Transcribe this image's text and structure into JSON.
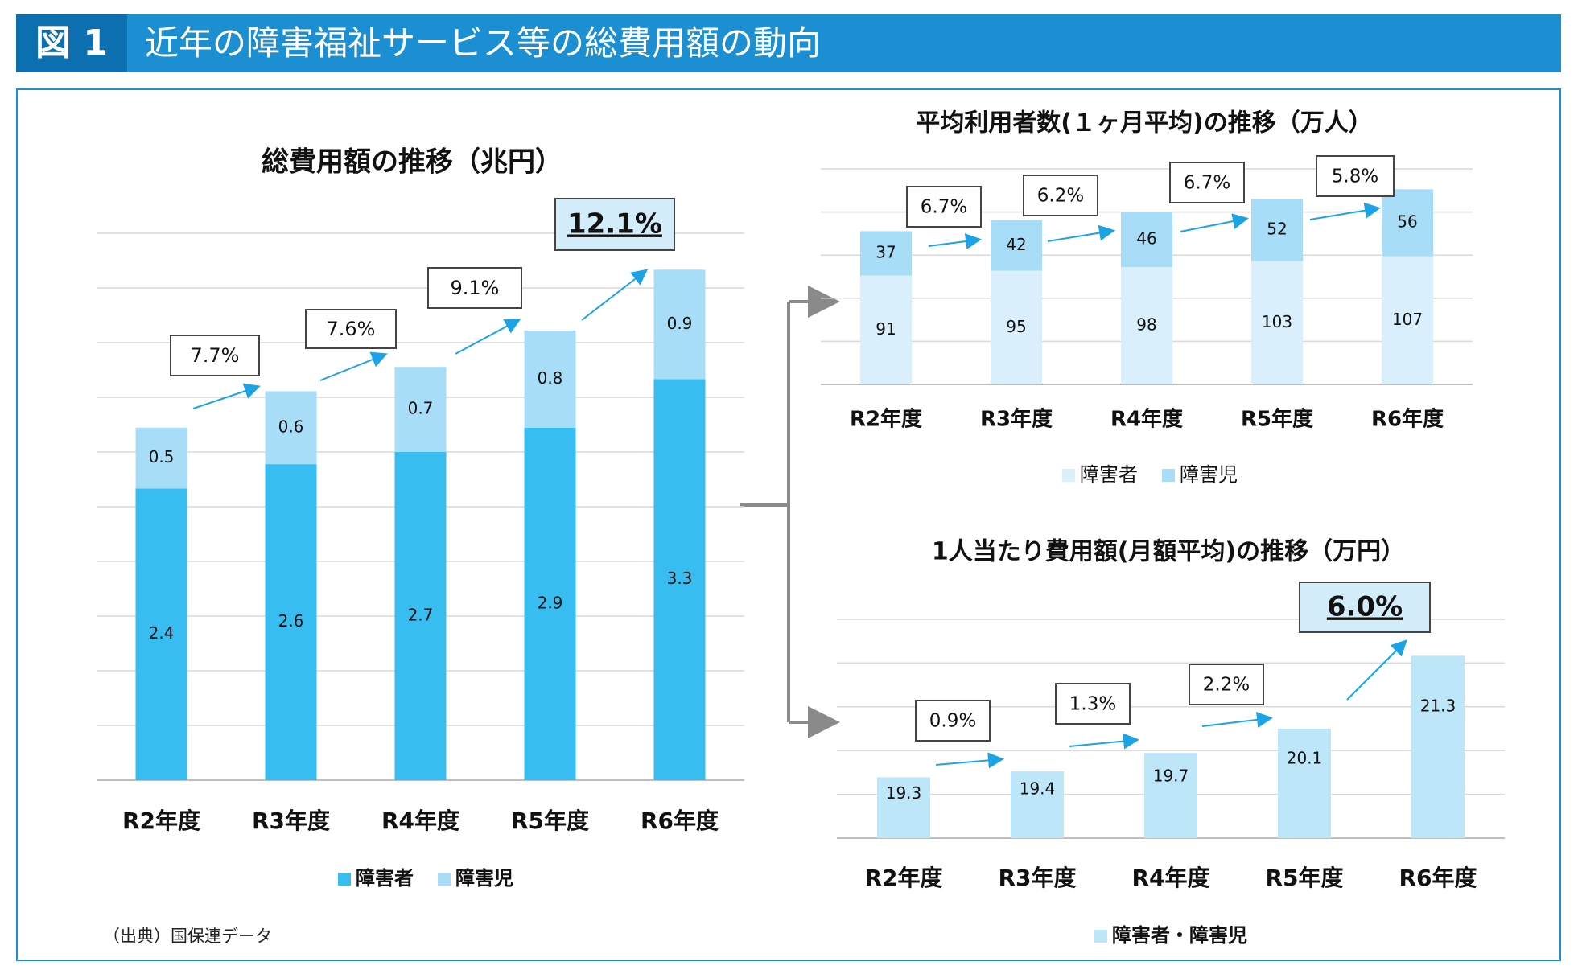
{
  "header": {
    "label": "図 1",
    "title": "近年の障害福祉サービス等の総費用額の動向"
  },
  "source": "（出典）国保連データ",
  "colors": {
    "header": "#1b8fd2",
    "adult_dark": "#38bdf0",
    "child_light": "#a8ddf7",
    "adult_pale": "#d9effb",
    "combined": "#bde6f8",
    "arrow": "#1ca3e5",
    "highlight": "#d3ecfa"
  },
  "chart_data": [
    {
      "type": "bar",
      "stacked": true,
      "title": "総費用額の推移（兆円）",
      "categories": [
        "R2年度",
        "R3年度",
        "R4年度",
        "R5年度",
        "R6年度"
      ],
      "series": [
        {
          "name": "障害者",
          "values": [
            2.4,
            2.6,
            2.7,
            2.9,
            3.3
          ]
        },
        {
          "name": "障害児",
          "values": [
            0.5,
            0.6,
            0.7,
            0.8,
            0.9
          ]
        }
      ],
      "growth_labels": [
        "7.7%",
        "7.6%",
        "9.1%",
        "12.1%"
      ],
      "highlight_label": "12.1%",
      "ylim": [
        0,
        4.5
      ],
      "grid": true,
      "legend": "bottom"
    },
    {
      "type": "bar",
      "stacked": true,
      "title": "平均利用者数(１ヶ月平均)の推移（万人）",
      "categories": [
        "R2年度",
        "R3年度",
        "R4年度",
        "R5年度",
        "R6年度"
      ],
      "series": [
        {
          "name": "障害者",
          "values": [
            91,
            95,
            98,
            103,
            107
          ]
        },
        {
          "name": "障害児",
          "values": [
            37,
            42,
            46,
            52,
            56
          ]
        }
      ],
      "growth_labels": [
        "6.7%",
        "6.2%",
        "6.7%",
        "5.8%"
      ],
      "ylim": [
        0,
        180
      ],
      "grid": true,
      "legend": "bottom"
    },
    {
      "type": "bar",
      "title": "1人当たり費用額(月額平均)の推移（万円）",
      "categories": [
        "R2年度",
        "R3年度",
        "R4年度",
        "R5年度",
        "R6年度"
      ],
      "series": [
        {
          "name": "障害者・障害児",
          "values": [
            19.3,
            19.4,
            19.7,
            20.1,
            21.3
          ]
        }
      ],
      "growth_labels": [
        "0.9%",
        "1.3%",
        "2.2%",
        "6.0%"
      ],
      "highlight_label": "6.0%",
      "ylim": [
        18.3,
        21.9
      ],
      "grid": true,
      "legend": "bottom"
    }
  ]
}
